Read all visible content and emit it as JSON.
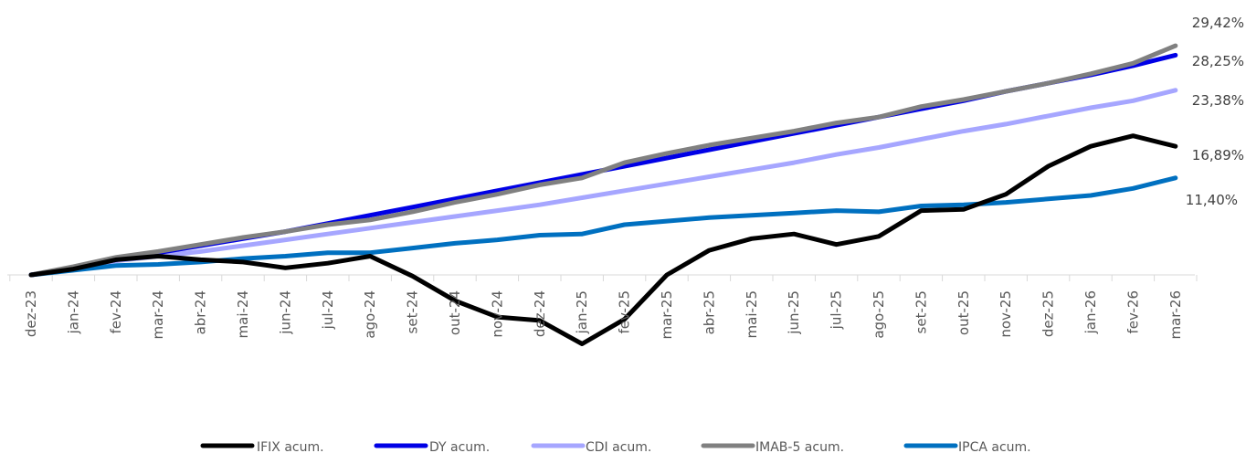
{
  "chart_data": {
    "type": "line",
    "title": "",
    "xlabel": "",
    "ylabel": "",
    "grid": false,
    "legend_position": "bottom",
    "ylim": [
      -6,
      22
    ],
    "categories": [
      "dez-23",
      "jan-24",
      "fev-24",
      "mar-24",
      "abr-24",
      "mai-24",
      "jun-24",
      "jul-24",
      "ago-24",
      "set-24",
      "out-24",
      "nov-24",
      "dez-24",
      "jan-25",
      "fev-25",
      "mar-25",
      "abr-25",
      "mai-25",
      "jun-25",
      "jul-25",
      "ago-25",
      "set-25",
      "out-25",
      "nov-25",
      "dez-25",
      "jan-26",
      "fev-26",
      "mar-26"
    ],
    "series": [
      {
        "name": "IFIX acum.",
        "color": "#000000",
        "values": [
          0.0,
          0.5,
          1.3,
          1.6,
          1.3,
          1.1,
          0.6,
          1.0,
          1.6,
          -0.1,
          -2.2,
          -3.6,
          -3.9,
          -5.9,
          -3.8,
          0.0,
          2.1,
          3.1,
          3.5,
          2.6,
          3.3,
          5.5,
          5.6,
          6.9,
          9.3,
          11.0,
          11.9,
          11.0
        ]
      },
      {
        "name": "DY acum.",
        "color": "#0000e6",
        "values": [
          0.0,
          0.6,
          1.3,
          1.9,
          2.5,
          3.1,
          3.7,
          4.4,
          5.1,
          5.8,
          6.5,
          7.2,
          7.9,
          8.6,
          9.3,
          10.0,
          10.7,
          11.4,
          12.1,
          12.8,
          13.5,
          14.2,
          14.9,
          15.7,
          16.4,
          17.1,
          17.9,
          18.8
        ]
      },
      {
        "name": "CDI acum.",
        "color": "#a6a6ff",
        "values": [
          0.0,
          0.5,
          1.2,
          1.6,
          2.0,
          2.5,
          3.0,
          3.5,
          4.0,
          4.5,
          5.0,
          5.5,
          6.0,
          6.6,
          7.2,
          7.8,
          8.4,
          9.0,
          9.6,
          10.3,
          10.9,
          11.6,
          12.3,
          12.9,
          13.6,
          14.3,
          14.9,
          15.8
        ]
      },
      {
        "name": "IMAB-5 acum.",
        "color": "#808080",
        "values": [
          0.0,
          0.7,
          1.5,
          2.0,
          2.6,
          3.2,
          3.7,
          4.3,
          4.7,
          5.4,
          6.2,
          6.9,
          7.7,
          8.3,
          9.6,
          10.4,
          11.1,
          11.7,
          12.3,
          13.0,
          13.5,
          14.4,
          15.0,
          15.7,
          16.4,
          17.2,
          18.1,
          19.6
        ]
      },
      {
        "name": "IPCA acum.",
        "color": "#0070c0",
        "values": [
          0.0,
          0.4,
          0.8,
          0.9,
          1.1,
          1.4,
          1.6,
          1.9,
          1.9,
          2.3,
          2.7,
          3.0,
          3.4,
          3.5,
          4.3,
          4.6,
          4.9,
          5.1,
          5.3,
          5.5,
          5.4,
          5.9,
          6.0,
          6.2,
          6.5,
          6.8,
          7.4,
          8.3
        ]
      }
    ],
    "end_labels": [
      "29,42%",
      "28,25%",
      "23,38%",
      "16,89%",
      "11,40%"
    ]
  }
}
